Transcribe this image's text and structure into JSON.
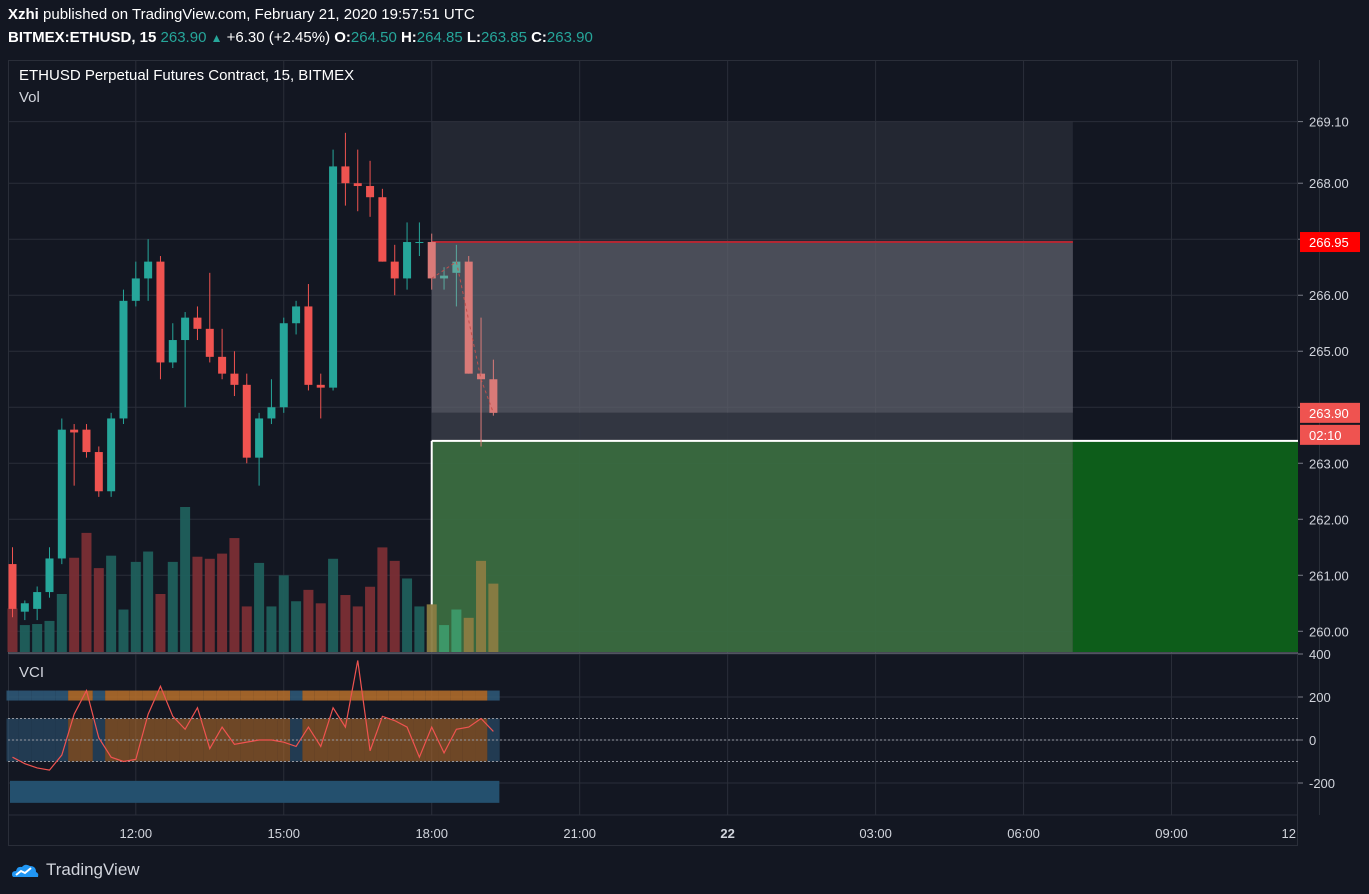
{
  "header": {
    "author": "Xzhi",
    "published": "published on TradingView.com, February 21, 2020 19:57:51 UTC",
    "symbol": "BITMEX:ETHUSD, 15",
    "last": "263.90",
    "change": "+6.30 (+2.45%)",
    "o_label": "O:",
    "o": "264.50",
    "h_label": "H:",
    "h": "264.85",
    "l_label": "L:",
    "l": "263.85",
    "c_label": "C:",
    "c": "263.90"
  },
  "legend": {
    "title": "ETHUSD Perpetual Futures Contract, 15, BITMEX",
    "volume": "Vol"
  },
  "indicator": {
    "name": "VCI"
  },
  "footer": {
    "brand": "TradingView"
  },
  "colors": {
    "bg": "#131722",
    "up": "#26a69a",
    "down": "#ef5350",
    "accent": "#ff0000",
    "target": "#0d5d1a"
  },
  "chart_data": {
    "type": "candlestick",
    "price_axis": {
      "ticks": [
        "269.10",
        "268.00",
        "267.00",
        "266.00",
        "265.00",
        "264.00",
        "263.00",
        "262.00",
        "261.00",
        "260.00"
      ],
      "tick_values": [
        269.1,
        268,
        267,
        266,
        265,
        264,
        263,
        262,
        261,
        260
      ],
      "ylim": [
        259.63,
        270.2
      ],
      "tags": [
        {
          "label": "266.95",
          "value": 266.95,
          "color": "#ff0000"
        },
        {
          "label": "263.90",
          "value": 263.9,
          "color": "#ef5350"
        },
        {
          "label": "02:10",
          "value": 263.5,
          "color": "#ef5350"
        }
      ]
    },
    "time_axis": {
      "labels": [
        "12:00",
        "15:00",
        "18:00",
        "21:00",
        "22",
        "03:00",
        "06:00",
        "09:00",
        "12"
      ],
      "bar_index": [
        10,
        22,
        34,
        46,
        58,
        70,
        82,
        94,
        106
      ]
    },
    "candles": [
      {
        "o": 261.2,
        "h": 261.5,
        "l": 260.25,
        "c": 260.4
      },
      {
        "o": 260.35,
        "h": 260.55,
        "l": 260.2,
        "c": 260.5
      },
      {
        "o": 260.4,
        "h": 260.8,
        "l": 260.2,
        "c": 260.7
      },
      {
        "o": 260.7,
        "h": 261.5,
        "l": 260.6,
        "c": 261.3
      },
      {
        "o": 261.3,
        "h": 263.8,
        "l": 261.2,
        "c": 263.6
      },
      {
        "o": 263.6,
        "h": 263.7,
        "l": 262.6,
        "c": 263.55
      },
      {
        "o": 263.6,
        "h": 263.7,
        "l": 263.1,
        "c": 263.2
      },
      {
        "o": 263.2,
        "h": 263.3,
        "l": 262.4,
        "c": 262.5
      },
      {
        "o": 262.5,
        "h": 263.9,
        "l": 262.4,
        "c": 263.8
      },
      {
        "o": 263.8,
        "h": 266.1,
        "l": 263.7,
        "c": 265.9
      },
      {
        "o": 265.9,
        "h": 266.6,
        "l": 265.8,
        "c": 266.3
      },
      {
        "o": 266.3,
        "h": 267.0,
        "l": 265.9,
        "c": 266.6
      },
      {
        "o": 266.6,
        "h": 266.7,
        "l": 264.5,
        "c": 264.8
      },
      {
        "o": 264.8,
        "h": 265.5,
        "l": 264.7,
        "c": 265.2
      },
      {
        "o": 265.2,
        "h": 265.7,
        "l": 264.0,
        "c": 265.6
      },
      {
        "o": 265.6,
        "h": 265.8,
        "l": 265.2,
        "c": 265.4
      },
      {
        "o": 265.4,
        "h": 266.4,
        "l": 264.8,
        "c": 264.9
      },
      {
        "o": 264.9,
        "h": 265.4,
        "l": 264.5,
        "c": 264.6
      },
      {
        "o": 264.6,
        "h": 265.0,
        "l": 264.2,
        "c": 264.4
      },
      {
        "o": 264.4,
        "h": 264.6,
        "l": 263.0,
        "c": 263.1
      },
      {
        "o": 263.1,
        "h": 263.9,
        "l": 262.6,
        "c": 263.8
      },
      {
        "o": 263.8,
        "h": 264.5,
        "l": 263.7,
        "c": 264.0
      },
      {
        "o": 264.0,
        "h": 265.6,
        "l": 263.9,
        "c": 265.5
      },
      {
        "o": 265.5,
        "h": 265.9,
        "l": 265.3,
        "c": 265.8
      },
      {
        "o": 265.8,
        "h": 266.2,
        "l": 264.3,
        "c": 264.4
      },
      {
        "o": 264.4,
        "h": 264.6,
        "l": 263.8,
        "c": 264.35
      },
      {
        "o": 264.35,
        "h": 268.6,
        "l": 264.3,
        "c": 268.3
      },
      {
        "o": 268.3,
        "h": 268.9,
        "l": 267.6,
        "c": 268.0
      },
      {
        "o": 268.0,
        "h": 268.6,
        "l": 267.5,
        "c": 267.95
      },
      {
        "o": 267.95,
        "h": 268.4,
        "l": 267.4,
        "c": 267.75
      },
      {
        "o": 267.75,
        "h": 267.9,
        "l": 266.6,
        "c": 266.6
      },
      {
        "o": 266.6,
        "h": 266.9,
        "l": 266.0,
        "c": 266.3
      },
      {
        "o": 266.3,
        "h": 267.3,
        "l": 266.1,
        "c": 266.95
      },
      {
        "o": 266.95,
        "h": 267.3,
        "l": 266.7,
        "c": 266.95
      },
      {
        "o": 266.95,
        "h": 267.1,
        "l": 266.1,
        "c": 266.3
      },
      {
        "o": 266.3,
        "h": 266.5,
        "l": 266.1,
        "c": 266.35
      },
      {
        "o": 266.4,
        "h": 266.9,
        "l": 265.8,
        "c": 266.6
      },
      {
        "o": 266.6,
        "h": 266.7,
        "l": 264.6,
        "c": 264.6
      },
      {
        "o": 264.6,
        "h": 265.6,
        "l": 263.3,
        "c": 264.5
      },
      {
        "o": 264.5,
        "h": 264.85,
        "l": 263.85,
        "c": 263.9
      }
    ],
    "volume": [
      0.42,
      0.26,
      0.27,
      0.3,
      0.56,
      0.91,
      1.15,
      0.81,
      0.93,
      0.41,
      0.87,
      0.97,
      0.56,
      0.87,
      1.4,
      0.92,
      0.9,
      0.95,
      1.1,
      0.44,
      0.86,
      0.44,
      0.74,
      0.49,
      0.6,
      0.47,
      0.9,
      0.55,
      0.44,
      0.63,
      1.01,
      0.88,
      0.71,
      0.44,
      0.46,
      0.26,
      0.41,
      0.33,
      0.88,
      0.66
    ],
    "volume_axis": {
      "ticks": [
        "400",
        "200",
        "0",
        "-200"
      ],
      "tick_values": [
        400,
        200,
        0,
        -200
      ]
    },
    "vci_osc": [
      -80,
      -110,
      -130,
      -140,
      -70,
      120,
      230,
      10,
      -80,
      -100,
      -90,
      120,
      250,
      110,
      50,
      150,
      -40,
      60,
      -20,
      -10,
      0,
      0,
      -10,
      -30,
      60,
      -30,
      150,
      60,
      370,
      -50,
      110,
      90,
      60,
      -80,
      60,
      -60,
      50,
      60,
      100,
      40
    ],
    "vci_bands": [
      100,
      0,
      -100
    ],
    "position": {
      "stop_value": 266.95,
      "stop_top": 269.1,
      "entry": 263.4,
      "target": 259.6,
      "start_bar": 34,
      "end_bar": 86
    }
  }
}
